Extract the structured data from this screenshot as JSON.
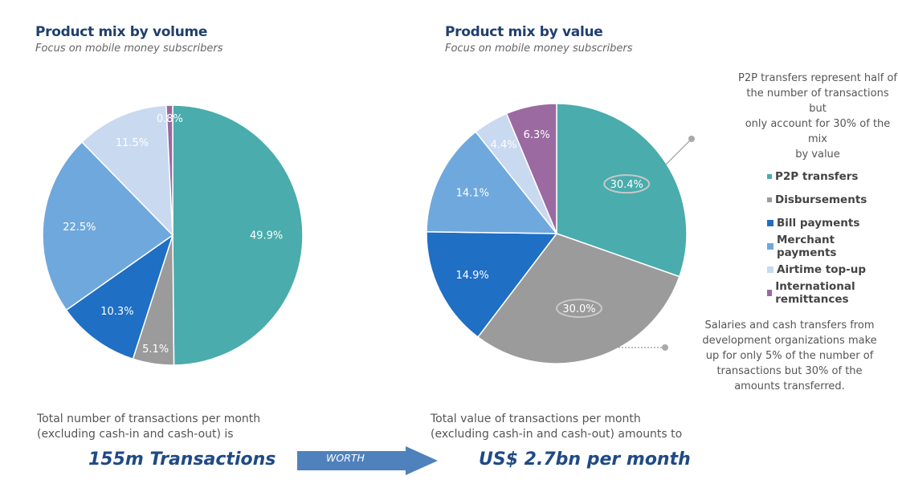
{
  "chart_data": [
    {
      "type": "pie",
      "title": "Product mix by volume",
      "subtitle": "Focus on mobile money subscribers",
      "categories": [
        "P2P transfers",
        "Disbursements",
        "Bill payments",
        "Merchant payments",
        "Airtime top-up",
        "International remittances"
      ],
      "values": [
        49.9,
        5.1,
        10.3,
        22.5,
        11.5,
        0.8
      ],
      "labels": [
        "49.9%",
        "5.1%",
        "10.3%",
        "22.5%",
        "11.5%",
        "0.8%"
      ]
    },
    {
      "type": "pie",
      "title": "Product mix by value",
      "subtitle": "Focus on mobile money subscribers",
      "categories": [
        "P2P transfers",
        "Disbursements",
        "Bill payments",
        "Merchant payments",
        "Airtime top-up",
        "International remittances"
      ],
      "values": [
        30.4,
        30.0,
        14.9,
        14.1,
        4.4,
        6.3
      ],
      "labels": [
        "30.4%",
        "30.0%",
        "14.9%",
        "14.1%",
        "4.4%",
        "6.3%"
      ],
      "legend": "right",
      "annotations": [
        "P2P transfers represent half of the number of transactions but only account for 30% of the mix by value",
        "Salaries and cash transfers from development organizations make up for only 5% of the number of transactions but 30% of the amounts transferred."
      ]
    }
  ],
  "colors": [
    "#4aacac",
    "#9b9b9b",
    "#1f6fc4",
    "#6fa8dc",
    "#c9d9f0",
    "#9a6aa0"
  ],
  "annotations": {
    "p2p_lines": [
      "P2P transfers represent half of",
      "the number of transactions but",
      "only account for 30% of the mix",
      "by value"
    ],
    "disb_lines": [
      "Salaries and cash transfers from",
      "development organizations make",
      "up for only 5% of the number of",
      "transactions but 30% of the",
      "amounts transferred."
    ]
  },
  "bottom": {
    "left_line1": "Total number of transactions per month",
    "left_line2": "(excluding cash-in and cash-out) is",
    "left_big": "155m Transactions",
    "arrow_label": "WORTH",
    "right_line1": "Total value of transactions per month",
    "right_line2": "(excluding cash-in and cash-out) amounts to",
    "right_big": "US$ 2.7bn per month"
  }
}
